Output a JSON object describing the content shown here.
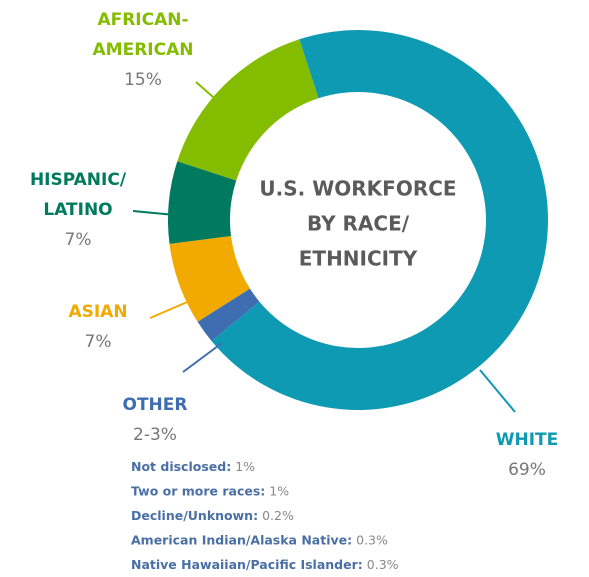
{
  "chart_data": {
    "type": "donut",
    "title": [
      "U.S. WORKFORCE",
      "BY RACE/",
      "ETHNICITY"
    ],
    "categories": [
      [
        "WHITE"
      ],
      [
        "OTHER"
      ],
      [
        "ASIAN"
      ],
      [
        "HISPANIC/",
        "LATINO"
      ],
      [
        "AFRICAN-",
        "AMERICAN"
      ]
    ],
    "values": [
      69,
      2,
      7,
      7,
      15
    ],
    "value_labels": [
      "69%",
      "2-3%",
      "7%",
      "7%",
      "15%"
    ],
    "colors": [
      "#0f9ab3",
      "#3f6db1",
      "#f2a900",
      "#007a5e",
      "#84bd00"
    ],
    "notes": [
      {
        "name": "Not disclosed:",
        "value": 1,
        "value_label": "1%"
      },
      {
        "name": "Two or more races:",
        "value": 1,
        "value_label": "1%"
      },
      {
        "name": "Decline/Unknown:",
        "value": 0.2,
        "value_label": "0.2%"
      },
      {
        "name": "American Indian/Alaska Native:",
        "value": 0.3,
        "value_label": "0.3%"
      },
      {
        "name": "Native Hawaiian/Pacific Islander:",
        "value": 0.3,
        "value_label": "0.3%"
      }
    ]
  }
}
